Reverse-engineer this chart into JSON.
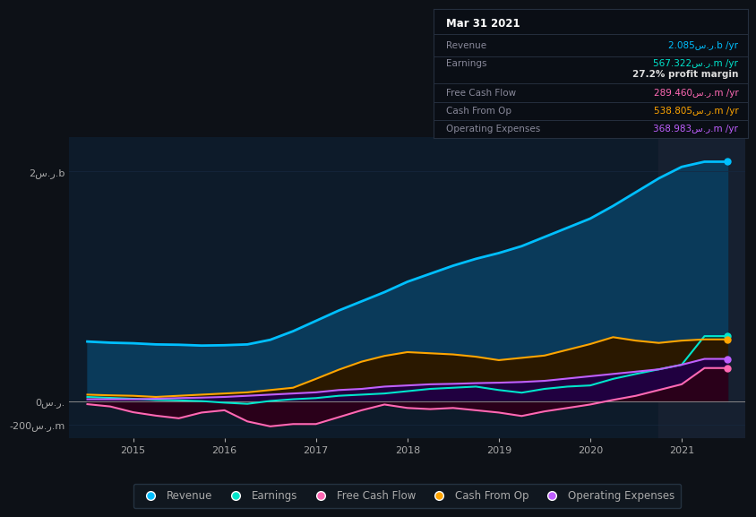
{
  "bg_color": "#0d1117",
  "plot_bg_color": "#0d1b2a",
  "title": "Mar 31 2021",
  "ytick_labels": [
    "2س.ر.b",
    "0س.ر.",
    "-200س.ر.m"
  ],
  "xlim_start": 2014.3,
  "xlim_end": 2021.7,
  "ylim_min": -320000000,
  "ylim_max": 2300000000,
  "x": [
    2014.5,
    2014.75,
    2015.0,
    2015.25,
    2015.5,
    2015.75,
    2016.0,
    2016.25,
    2016.5,
    2016.75,
    2017.0,
    2017.25,
    2017.5,
    2017.75,
    2018.0,
    2018.25,
    2018.5,
    2018.75,
    2019.0,
    2019.25,
    2019.5,
    2019.75,
    2020.0,
    2020.25,
    2020.5,
    2020.75,
    2021.0,
    2021.25,
    2021.5
  ],
  "revenue": [
    520000000,
    510000000,
    505000000,
    495000000,
    492000000,
    485000000,
    488000000,
    495000000,
    535000000,
    610000000,
    700000000,
    790000000,
    870000000,
    950000000,
    1040000000,
    1110000000,
    1180000000,
    1240000000,
    1290000000,
    1350000000,
    1430000000,
    1510000000,
    1590000000,
    1700000000,
    1820000000,
    1940000000,
    2040000000,
    2085000000,
    2085000000
  ],
  "earnings": [
    38000000,
    30000000,
    22000000,
    12000000,
    8000000,
    2000000,
    -12000000,
    -22000000,
    3000000,
    18000000,
    28000000,
    48000000,
    58000000,
    68000000,
    88000000,
    108000000,
    118000000,
    128000000,
    98000000,
    75000000,
    108000000,
    128000000,
    138000000,
    195000000,
    238000000,
    278000000,
    318000000,
    567322000,
    567322000
  ],
  "free_cash_flow": [
    -25000000,
    -45000000,
    -95000000,
    -125000000,
    -148000000,
    -98000000,
    -78000000,
    -175000000,
    -218000000,
    -198000000,
    -198000000,
    -138000000,
    -78000000,
    -28000000,
    -58000000,
    -68000000,
    -58000000,
    -78000000,
    -98000000,
    -128000000,
    -88000000,
    -58000000,
    -28000000,
    12000000,
    48000000,
    98000000,
    148000000,
    289460000,
    289460000
  ],
  "cash_from_op": [
    58000000,
    52000000,
    48000000,
    38000000,
    48000000,
    58000000,
    68000000,
    78000000,
    98000000,
    118000000,
    195000000,
    275000000,
    345000000,
    395000000,
    428000000,
    418000000,
    408000000,
    388000000,
    358000000,
    378000000,
    398000000,
    448000000,
    498000000,
    558000000,
    528000000,
    508000000,
    528000000,
    538805000,
    538805000
  ],
  "operating_expenses": [
    18000000,
    18000000,
    18000000,
    22000000,
    28000000,
    32000000,
    38000000,
    48000000,
    58000000,
    68000000,
    78000000,
    98000000,
    108000000,
    128000000,
    138000000,
    148000000,
    152000000,
    158000000,
    162000000,
    168000000,
    178000000,
    198000000,
    218000000,
    238000000,
    258000000,
    278000000,
    318000000,
    368983000,
    368983000
  ],
  "revenue_color": "#00bfff",
  "revenue_fill": "#0a3a5a",
  "earnings_color": "#00e5cc",
  "earnings_fill": "#003535",
  "fcf_color": "#ff69b4",
  "fcf_fill": "#2a001a",
  "cashop_color": "#ffa500",
  "cashop_fill": "#2a1800",
  "opex_color": "#bf5fff",
  "opex_fill": "#200040",
  "legend_labels": [
    "Revenue",
    "Earnings",
    "Free Cash Flow",
    "Cash From Op",
    "Operating Expenses"
  ],
  "legend_colors": [
    "#00bfff",
    "#00e5cc",
    "#ff69b4",
    "#ffa500",
    "#bf5fff"
  ],
  "grid_color": "#162840",
  "zero_line_color": "#888888",
  "text_color": "#aaaaaa",
  "highlight_color": "#162030"
}
